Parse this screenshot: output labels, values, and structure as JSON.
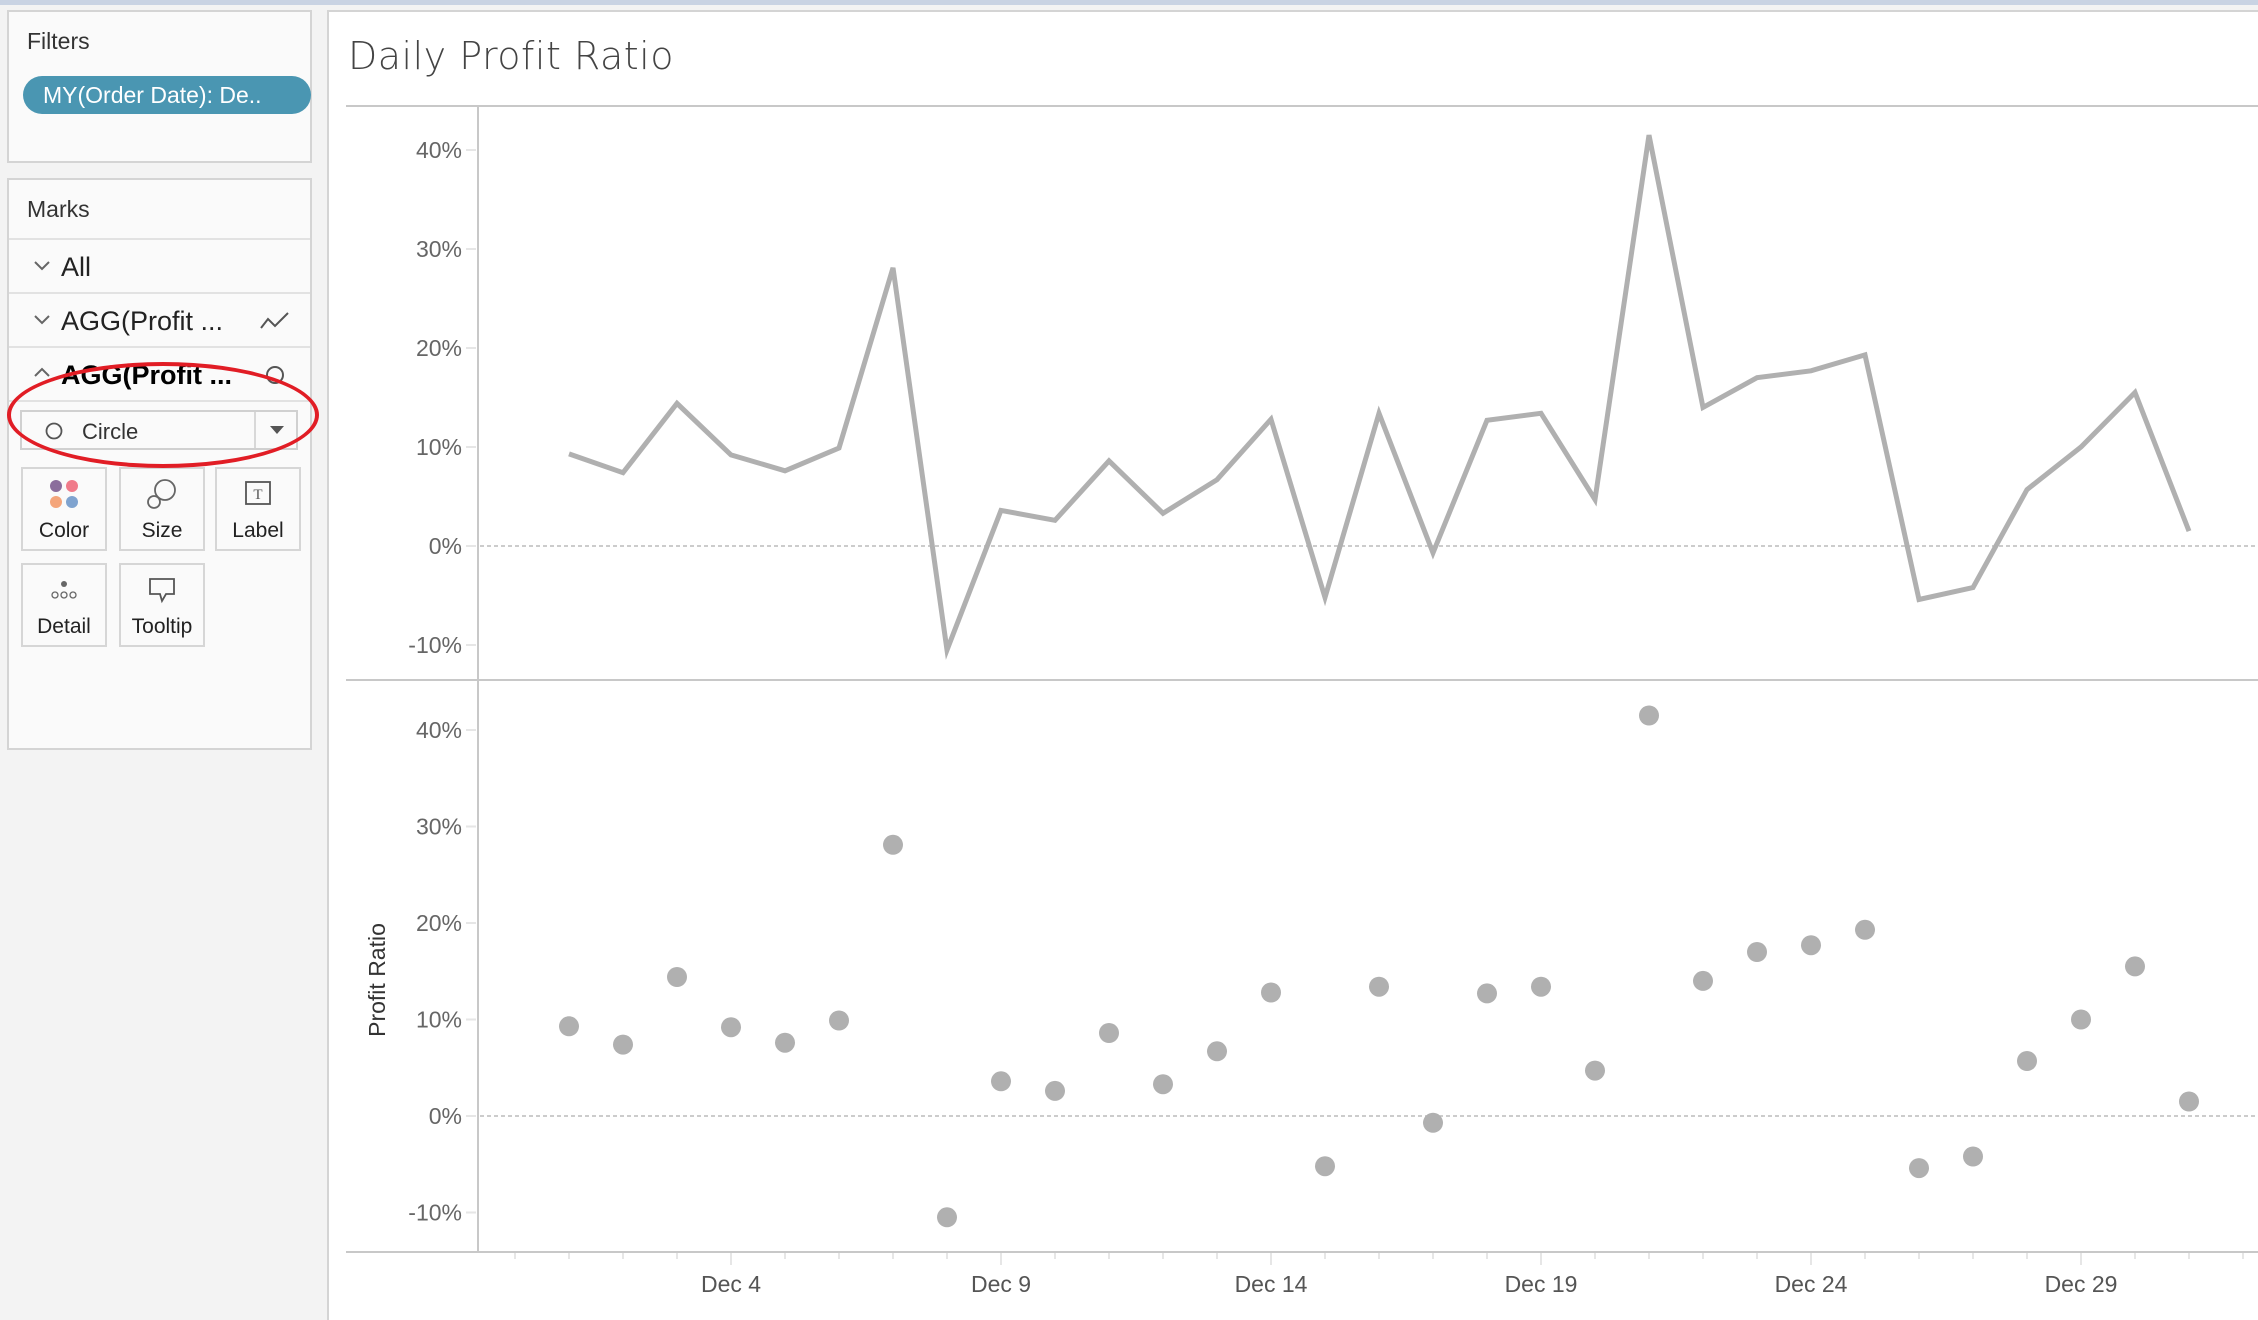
{
  "filters": {
    "title": "Filters",
    "pills": [
      {
        "label": "MY(Order Date): De.."
      }
    ]
  },
  "marks": {
    "title": "Marks",
    "rows": [
      {
        "label": "All",
        "expanded": false,
        "icon": "chevron-down-icon"
      },
      {
        "label": "AGG(Profit ...",
        "expanded": false,
        "mark_icon": "line-mark-icon"
      },
      {
        "label": "AGG(Profit ...",
        "expanded": true,
        "mark_icon": "circle-mark-icon"
      }
    ],
    "mark_type": {
      "value": "Circle",
      "icon": "circle-icon"
    },
    "tiles": [
      {
        "label": "Color",
        "icon": "color-icon"
      },
      {
        "label": "Size",
        "icon": "size-icon"
      },
      {
        "label": "Label",
        "icon": "label-icon"
      },
      {
        "label": "Detail",
        "icon": "detail-icon"
      },
      {
        "label": "Tooltip",
        "icon": "tooltip-icon"
      }
    ]
  },
  "colors": {
    "pill": "#4a96b2",
    "mark": "#b0b0b0",
    "axis": "#c8c8c8",
    "annotation": "#e11d25",
    "color_swatches": [
      "#8b6d9c",
      "#f07b8a",
      "#f4a57a",
      "#7fa3cf"
    ]
  },
  "chart_data": [
    {
      "type": "line",
      "title": "Daily Profit Ratio",
      "xlabel": "",
      "ylabel": "",
      "x": [
        "Dec 1",
        "Dec 2",
        "Dec 3",
        "Dec 4",
        "Dec 5",
        "Dec 6",
        "Dec 7",
        "Dec 8",
        "Dec 9",
        "Dec 10",
        "Dec 11",
        "Dec 12",
        "Dec 13",
        "Dec 14",
        "Dec 15",
        "Dec 16",
        "Dec 17",
        "Dec 18",
        "Dec 19",
        "Dec 20",
        "Dec 21",
        "Dec 22",
        "Dec 23",
        "Dec 24",
        "Dec 25",
        "Dec 26",
        "Dec 27",
        "Dec 28",
        "Dec 29",
        "Dec 30",
        "Dec 31"
      ],
      "series": [
        {
          "name": "AGG(Profit Ratio)",
          "values": [
            9.3,
            7.4,
            14.4,
            9.2,
            7.6,
            9.9,
            28.1,
            -10.5,
            3.6,
            2.6,
            8.6,
            3.3,
            6.7,
            12.8,
            -5.2,
            13.4,
            -0.7,
            12.7,
            13.4,
            4.7,
            41.5,
            14.0,
            17.0,
            17.7,
            19.3,
            -5.4,
            -4.2,
            5.7,
            10.0,
            15.5,
            1.5
          ]
        }
      ],
      "y_ticks": [
        "40%",
        "30%",
        "20%",
        "10%",
        "0%",
        "-10%"
      ],
      "ylim": [
        -12,
        44
      ],
      "zero_line": "dotted",
      "grid": false
    },
    {
      "type": "scatter",
      "title": "",
      "xlabel": "",
      "ylabel": "Profit Ratio",
      "x": [
        "Dec 1",
        "Dec 2",
        "Dec 3",
        "Dec 4",
        "Dec 5",
        "Dec 6",
        "Dec 7",
        "Dec 8",
        "Dec 9",
        "Dec 10",
        "Dec 11",
        "Dec 12",
        "Dec 13",
        "Dec 14",
        "Dec 15",
        "Dec 16",
        "Dec 17",
        "Dec 18",
        "Dec 19",
        "Dec 20",
        "Dec 21",
        "Dec 22",
        "Dec 23",
        "Dec 24",
        "Dec 25",
        "Dec 26",
        "Dec 27",
        "Dec 28",
        "Dec 29",
        "Dec 30",
        "Dec 31"
      ],
      "series": [
        {
          "name": "AGG(Profit Ratio)",
          "values": [
            9.3,
            7.4,
            14.4,
            9.2,
            7.6,
            9.9,
            28.1,
            -10.5,
            3.6,
            2.6,
            8.6,
            3.3,
            6.7,
            12.8,
            -5.2,
            13.4,
            -0.7,
            12.7,
            13.4,
            4.7,
            41.5,
            14.0,
            17.0,
            17.7,
            19.3,
            -5.4,
            -4.2,
            5.7,
            10.0,
            15.5,
            1.5
          ]
        }
      ],
      "y_ticks": [
        "40%",
        "30%",
        "20%",
        "10%",
        "0%",
        "-10%"
      ],
      "x_tick_labels": [
        "Dec 4",
        "Dec 9",
        "Dec 14",
        "Dec 19",
        "Dec 24",
        "Dec 29"
      ],
      "ylim": [
        -12,
        44
      ],
      "zero_line": "dotted",
      "grid": false
    }
  ]
}
